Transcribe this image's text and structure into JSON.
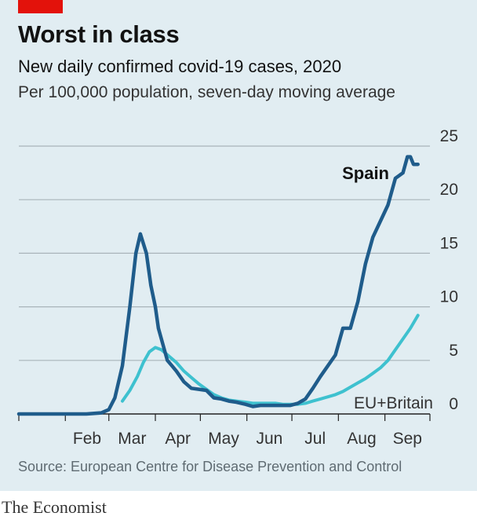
{
  "header": {
    "title": "Worst in class",
    "subtitle": "New daily confirmed covid-19 cases, 2020",
    "subsubtitle": "Per 100,000 population, seven-day moving average"
  },
  "footer": {
    "source": "Source: European Centre for Disease Prevention and Control",
    "brand": "The Economist"
  },
  "colors": {
    "panel": "#e1edf2",
    "accent": "#e3120b",
    "spain": "#1f5c8b",
    "eu": "#3ec1cf",
    "grid": "#a9b4ba"
  },
  "chart_data": {
    "type": "line",
    "xlabel": "",
    "ylabel": "",
    "ylim": [
      0,
      25
    ],
    "yticks": [
      0,
      5,
      10,
      15,
      20,
      25
    ],
    "y_axis_side": "right",
    "grid": true,
    "x_tick_labels": [
      "Feb",
      "Mar",
      "Apr",
      "May",
      "Jun",
      "Jul",
      "Aug",
      "Sep"
    ],
    "series": [
      {
        "name": "Spain",
        "x": [
          "Jan 1",
          "Feb 15",
          "Feb 25",
          "Mar 1",
          "Mar 5",
          "Mar 10",
          "Mar 15",
          "Mar 19",
          "Mar 22",
          "Mar 26",
          "Mar 29",
          "Apr 1",
          "Apr 3",
          "Apr 6",
          "Apr 9",
          "Apr 12",
          "Apr 15",
          "Apr 20",
          "Apr 25",
          "Apr 30",
          "May 5",
          "May 10",
          "May 15",
          "May 20",
          "May 25",
          "May 31",
          "Jun 5",
          "Jun 10",
          "Jun 15",
          "Jun 20",
          "Jun 25",
          "Jun 30",
          "Jul 5",
          "Jul 10",
          "Jul 15",
          "Jul 20",
          "Jul 25",
          "Jul 30",
          "Aug 4",
          "Aug 9",
          "Aug 14",
          "Aug 19",
          "Aug 24",
          "Aug 29",
          "Sep 3",
          "Sep 8",
          "Sep 13",
          "Sep 16",
          "Sep 18",
          "Sep 20",
          "Sep 23"
        ],
        "values": [
          0,
          0,
          0.1,
          0.4,
          1.5,
          4.5,
          10,
          15,
          16.8,
          15,
          12,
          10,
          8,
          6.5,
          5,
          4.5,
          4,
          3,
          2.4,
          2.3,
          2.2,
          1.5,
          1.4,
          1.2,
          1.1,
          0.9,
          0.7,
          0.8,
          0.8,
          0.8,
          0.8,
          0.8,
          1,
          1.4,
          2.4,
          3.5,
          4.5,
          5.5,
          8,
          8,
          10.5,
          14,
          16.5,
          18,
          19.5,
          22,
          22.5,
          24,
          24,
          23.3,
          23.3
        ],
        "label": "Spain"
      },
      {
        "name": "EU+Britain",
        "x": [
          "Mar 10",
          "Mar 15",
          "Mar 20",
          "Mar 24",
          "Mar 28",
          "Apr 1",
          "Apr 5",
          "Apr 10",
          "Apr 15",
          "Apr 20",
          "Apr 25",
          "Apr 30",
          "May 5",
          "May 10",
          "May 15",
          "May 20",
          "May 25",
          "May 31",
          "Jun 5",
          "Jun 10",
          "Jun 15",
          "Jun 20",
          "Jun 25",
          "Jun 30",
          "Jul 5",
          "Jul 10",
          "Jul 15",
          "Jul 20",
          "Jul 25",
          "Jul 30",
          "Aug 4",
          "Aug 9",
          "Aug 14",
          "Aug 19",
          "Aug 24",
          "Aug 29",
          "Sep 3",
          "Sep 8",
          "Sep 13",
          "Sep 18",
          "Sep 23"
        ],
        "values": [
          1.2,
          2.2,
          3.5,
          4.8,
          5.8,
          6.2,
          6,
          5.4,
          4.8,
          4,
          3.4,
          2.8,
          2.3,
          1.8,
          1.5,
          1.3,
          1.2,
          1.1,
          1,
          1,
          1,
          1,
          0.9,
          0.9,
          0.9,
          1,
          1.2,
          1.4,
          1.6,
          1.8,
          2.1,
          2.5,
          2.9,
          3.3,
          3.8,
          4.3,
          5,
          6,
          7,
          8,
          9.2
        ],
        "label": "EU+Britain"
      }
    ]
  }
}
